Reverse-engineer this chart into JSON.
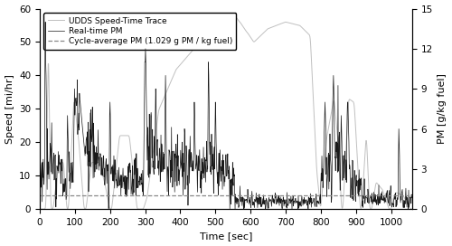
{
  "speed_color": "#c0c0c0",
  "pm_color": "#1a1a1a",
  "avg_pm_color": "#888888",
  "avg_pm_value": 1.029,
  "speed_ylim": [
    0,
    60
  ],
  "pm_ylim": [
    0,
    15
  ],
  "xlim": [
    0,
    1060
  ],
  "xlabel": "Time [sec]",
  "ylabel_left": "Speed [mi/hr]",
  "ylabel_right": "PM [g/kg fuel]",
  "legend_labels": [
    "UDDS Speed-Time Trace",
    "Real-time PM",
    "Cycle-average PM (1.029 g PM / kg fuel)"
  ],
  "xticks": [
    0,
    100,
    200,
    300,
    400,
    500,
    600,
    700,
    800,
    900,
    1000
  ],
  "yticks_left": [
    0,
    10,
    20,
    30,
    40,
    50,
    60
  ],
  "yticks_right": [
    0,
    3,
    6,
    9,
    12,
    15
  ],
  "figsize": [
    5.0,
    2.72
  ],
  "dpi": 100
}
